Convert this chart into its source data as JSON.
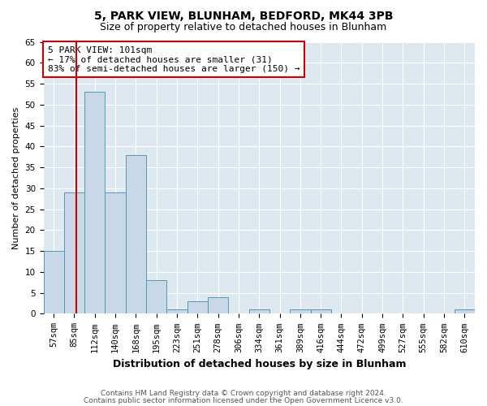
{
  "title1": "5, PARK VIEW, BLUNHAM, BEDFORD, MK44 3PB",
  "title2": "Size of property relative to detached houses in Blunham",
  "xlabel": "Distribution of detached houses by size in Blunham",
  "ylabel": "Number of detached properties",
  "bar_labels": [
    "57sqm",
    "85sqm",
    "112sqm",
    "140sqm",
    "168sqm",
    "195sqm",
    "223sqm",
    "251sqm",
    "278sqm",
    "306sqm",
    "334sqm",
    "361sqm",
    "389sqm",
    "416sqm",
    "444sqm",
    "472sqm",
    "499sqm",
    "527sqm",
    "555sqm",
    "582sqm",
    "610sqm"
  ],
  "bar_values": [
    15,
    29,
    53,
    29,
    38,
    8,
    1,
    3,
    4,
    0,
    1,
    0,
    1,
    1,
    0,
    0,
    0,
    0,
    0,
    0,
    1
  ],
  "bar_color": "#c8d8e8",
  "bar_edge_color": "#5599aa",
  "vline_index": 1.57,
  "annotation_text": "5 PARK VIEW: 101sqm\n← 17% of detached houses are smaller (31)\n83% of semi-detached houses are larger (150) →",
  "annotation_box_color": "#ffffff",
  "annotation_box_edge": "#cc0000",
  "footer1": "Contains HM Land Registry data © Crown copyright and database right 2024.",
  "footer2": "Contains public sector information licensed under the Open Government Licence v3.0.",
  "ylim": [
    0,
    65
  ],
  "yticks": [
    0,
    5,
    10,
    15,
    20,
    25,
    30,
    35,
    40,
    45,
    50,
    55,
    60,
    65
  ],
  "vline_color": "#cc0000",
  "bg_color": "#dde8f0",
  "grid_color": "#ffffff",
  "title1_fontsize": 10,
  "title2_fontsize": 9,
  "annotation_fontsize": 8,
  "ylabel_fontsize": 8,
  "xlabel_fontsize": 9,
  "tick_fontsize": 7.5,
  "footer_fontsize": 6.5
}
